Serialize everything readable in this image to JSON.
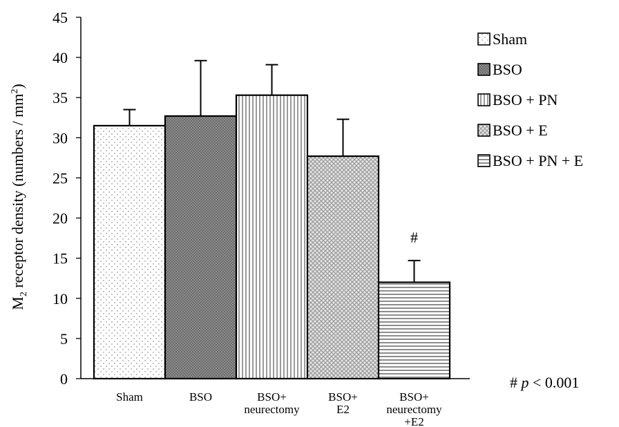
{
  "chart_data": {
    "type": "bar",
    "ylabel_main": "M",
    "ylabel_sub": "2",
    "ylabel_rest": " receptor density (numbers / mm",
    "ylabel_sup": "2",
    "ylabel_end": ")",
    "ylim": [
      0,
      45
    ],
    "yticks": [
      "0",
      "5",
      "10",
      "15",
      "20",
      "25",
      "30",
      "35",
      "40",
      "45"
    ],
    "categories": [
      [
        "Sham"
      ],
      [
        "BSO"
      ],
      [
        "BSO+",
        "neurectomy"
      ],
      [
        "BSO+",
        "E2"
      ],
      [
        "BSO+",
        "neurectomy",
        "+E2"
      ]
    ],
    "values": [
      31.5,
      32.7,
      35.3,
      27.7,
      12.0
    ],
    "errors": [
      2.0,
      6.9,
      3.8,
      4.6,
      2.7
    ],
    "significance": [
      "",
      "",
      "",
      "",
      "#"
    ],
    "legend": [
      "Sham",
      "BSO",
      "BSO + PN",
      "BSO + E",
      "BSO + PN + E"
    ],
    "legend_position": "right",
    "patterns": [
      "dots",
      "checker-dark",
      "vertical-lines",
      "diagonal-cross",
      "horizontal-lines"
    ],
    "note": {
      "prefix": "# ",
      "italic": "p",
      "suffix": " < 0.001"
    },
    "grid": false
  }
}
